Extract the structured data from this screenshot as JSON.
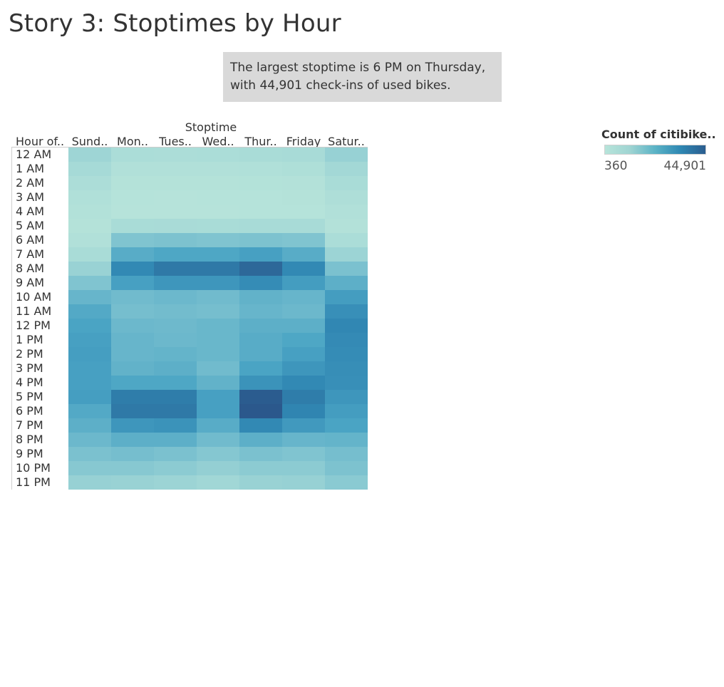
{
  "title": "Story 3: Stoptimes by Hour",
  "annotation": {
    "line1": "The largest stoptime is 6 PM on Thursday,",
    "line2": "with 44,901 check-ins of used bikes."
  },
  "legend": {
    "title": "Count of citibike..",
    "min_label": "360",
    "max_label": "44,901"
  },
  "colors": {
    "low": "#b7e4da",
    "high": "#2b5d8f"
  },
  "chart_data": {
    "type": "heatmap",
    "column_axis_title": "Stoptime",
    "row_header": "Hour of..",
    "columns": [
      "Sund..",
      "Mon..",
      "Tues..",
      "Wed..",
      "Thur..",
      "Friday",
      "Satur.."
    ],
    "rows": [
      "12 AM",
      "1 AM",
      "2 AM",
      "3 AM",
      "4 AM",
      "5 AM",
      "6 AM",
      "7 AM",
      "8 AM",
      "9 AM",
      "10 AM",
      "11 AM",
      "12 PM",
      "1 PM",
      "2 PM",
      "3 PM",
      "4 PM",
      "5 PM",
      "6 PM",
      "7 PM",
      "8 PM",
      "9 PM",
      "10 PM",
      "11 PM"
    ],
    "value_range": [
      360,
      44901
    ],
    "values": [
      [
        8000,
        4500,
        4200,
        4400,
        5000,
        5500,
        9500
      ],
      [
        6000,
        2500,
        2400,
        2500,
        2800,
        3200,
        7000
      ],
      [
        4200,
        1400,
        1300,
        1400,
        1600,
        1800,
        5000
      ],
      [
        2800,
        900,
        850,
        900,
        1000,
        1200,
        3500
      ],
      [
        2000,
        800,
        750,
        800,
        900,
        1000,
        2400
      ],
      [
        1500,
        5000,
        5200,
        5000,
        5500,
        5500,
        1800
      ],
      [
        2500,
        14000,
        14500,
        14000,
        14500,
        14000,
        4500
      ],
      [
        5000,
        22000,
        24000,
        24000,
        26000,
        22000,
        8500
      ],
      [
        9000,
        33000,
        37000,
        37000,
        41000,
        33000,
        15000
      ],
      [
        14000,
        26000,
        29000,
        29000,
        32000,
        27000,
        21000
      ],
      [
        19000,
        17000,
        18000,
        17000,
        20000,
        19000,
        27000
      ],
      [
        23000,
        16000,
        16500,
        16000,
        19000,
        18000,
        31000
      ],
      [
        25000,
        18000,
        17500,
        18500,
        21000,
        21000,
        33500
      ],
      [
        26000,
        19000,
        18000,
        18500,
        22000,
        24000,
        32500
      ],
      [
        26500,
        19000,
        19500,
        18500,
        22000,
        26000,
        32000
      ],
      [
        26000,
        20000,
        21000,
        17000,
        25000,
        29000,
        31500
      ],
      [
        26000,
        24000,
        24000,
        20000,
        30000,
        33000,
        31000
      ],
      [
        26500,
        36000,
        36000,
        26000,
        44000,
        36000,
        29000
      ],
      [
        23000,
        37000,
        37000,
        26000,
        44901,
        34000,
        27000
      ],
      [
        21000,
        29000,
        30000,
        22000,
        33000,
        28000,
        25000
      ],
      [
        18000,
        21000,
        21000,
        17000,
        21000,
        19000,
        19500
      ],
      [
        15000,
        16000,
        15000,
        13000,
        15000,
        14000,
        16000
      ],
      [
        12500,
        12500,
        11500,
        10000,
        11500,
        11500,
        14500
      ],
      [
        9500,
        9000,
        8500,
        7500,
        9000,
        9500,
        12000
      ]
    ]
  }
}
